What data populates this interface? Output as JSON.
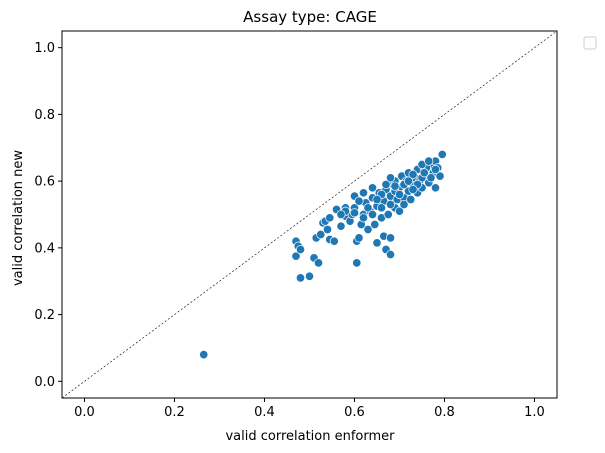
{
  "chart_data": {
    "type": "scatter",
    "title": "Assay type: CAGE",
    "xlabel": "valid correlation enformer",
    "ylabel": "valid correlation new",
    "xlim": [
      -0.05,
      1.05
    ],
    "ylim": [
      -0.05,
      1.05
    ],
    "xticks": [
      0.0,
      0.2,
      0.4,
      0.6,
      0.8,
      1.0
    ],
    "yticks": [
      0.0,
      0.2,
      0.4,
      0.6,
      0.8,
      1.0
    ],
    "xtick_labels": [
      "0.0",
      "0.2",
      "0.4",
      "0.6",
      "0.8",
      "1.0"
    ],
    "ytick_labels": [
      "0.0",
      "0.2",
      "0.4",
      "0.6",
      "0.8",
      "1.0"
    ],
    "reference_line": {
      "style": "dashed",
      "from": [
        -0.05,
        -0.05
      ],
      "to": [
        1.05,
        1.05
      ]
    },
    "legend": {
      "placement": "outside-top-right",
      "entries": []
    },
    "marker_color": "#1f77b4",
    "marker_edge_color": "#ffffff",
    "series": [
      {
        "name": "CAGE",
        "points": [
          [
            0.265,
            0.08
          ],
          [
            0.47,
            0.42
          ],
          [
            0.475,
            0.405
          ],
          [
            0.47,
            0.375
          ],
          [
            0.48,
            0.395
          ],
          [
            0.48,
            0.31
          ],
          [
            0.5,
            0.315
          ],
          [
            0.51,
            0.37
          ],
          [
            0.515,
            0.43
          ],
          [
            0.52,
            0.355
          ],
          [
            0.525,
            0.44
          ],
          [
            0.53,
            0.475
          ],
          [
            0.535,
            0.48
          ],
          [
            0.54,
            0.455
          ],
          [
            0.545,
            0.425
          ],
          [
            0.545,
            0.49
          ],
          [
            0.555,
            0.42
          ],
          [
            0.56,
            0.515
          ],
          [
            0.57,
            0.465
          ],
          [
            0.58,
            0.495
          ],
          [
            0.58,
            0.52
          ],
          [
            0.59,
            0.48
          ],
          [
            0.595,
            0.5
          ],
          [
            0.6,
            0.52
          ],
          [
            0.605,
            0.42
          ],
          [
            0.605,
            0.355
          ],
          [
            0.61,
            0.43
          ],
          [
            0.615,
            0.47
          ],
          [
            0.62,
            0.5
          ],
          [
            0.625,
            0.535
          ],
          [
            0.63,
            0.455
          ],
          [
            0.635,
            0.51
          ],
          [
            0.64,
            0.55
          ],
          [
            0.645,
            0.47
          ],
          [
            0.65,
            0.415
          ],
          [
            0.65,
            0.525
          ],
          [
            0.655,
            0.565
          ],
          [
            0.66,
            0.49
          ],
          [
            0.665,
            0.435
          ],
          [
            0.665,
            0.54
          ],
          [
            0.67,
            0.395
          ],
          [
            0.67,
            0.575
          ],
          [
            0.675,
            0.5
          ],
          [
            0.68,
            0.43
          ],
          [
            0.68,
            0.38
          ],
          [
            0.68,
            0.555
          ],
          [
            0.685,
            0.59
          ],
          [
            0.69,
            0.52
          ],
          [
            0.69,
            0.6
          ],
          [
            0.695,
            0.545
          ],
          [
            0.7,
            0.51
          ],
          [
            0.7,
            0.58
          ],
          [
            0.705,
            0.615
          ],
          [
            0.71,
            0.55
          ],
          [
            0.71,
            0.53
          ],
          [
            0.715,
            0.6
          ],
          [
            0.72,
            0.57
          ],
          [
            0.72,
            0.625
          ],
          [
            0.725,
            0.545
          ],
          [
            0.73,
            0.59
          ],
          [
            0.735,
            0.61
          ],
          [
            0.74,
            0.565
          ],
          [
            0.74,
            0.635
          ],
          [
            0.745,
            0.6
          ],
          [
            0.75,
            0.58
          ],
          [
            0.755,
            0.64
          ],
          [
            0.76,
            0.615
          ],
          [
            0.765,
            0.595
          ],
          [
            0.77,
            0.65
          ],
          [
            0.775,
            0.625
          ],
          [
            0.78,
            0.58
          ],
          [
            0.78,
            0.66
          ],
          [
            0.785,
            0.64
          ],
          [
            0.79,
            0.615
          ],
          [
            0.795,
            0.68
          ],
          [
            0.6,
            0.555
          ],
          [
            0.61,
            0.54
          ],
          [
            0.62,
            0.565
          ],
          [
            0.63,
            0.52
          ],
          [
            0.64,
            0.58
          ],
          [
            0.66,
            0.56
          ],
          [
            0.67,
            0.59
          ],
          [
            0.68,
            0.61
          ],
          [
            0.69,
            0.57
          ],
          [
            0.71,
            0.59
          ],
          [
            0.73,
            0.62
          ],
          [
            0.75,
            0.61
          ],
          [
            0.76,
            0.64
          ],
          [
            0.77,
            0.61
          ],
          [
            0.72,
            0.6
          ],
          [
            0.74,
            0.59
          ],
          [
            0.7,
            0.56
          ],
          [
            0.68,
            0.53
          ],
          [
            0.66,
            0.52
          ],
          [
            0.64,
            0.5
          ],
          [
            0.62,
            0.49
          ],
          [
            0.58,
            0.51
          ],
          [
            0.57,
            0.5
          ],
          [
            0.6,
            0.505
          ],
          [
            0.65,
            0.545
          ],
          [
            0.69,
            0.585
          ],
          [
            0.73,
            0.575
          ],
          [
            0.75,
            0.65
          ],
          [
            0.78,
            0.635
          ],
          [
            0.765,
            0.66
          ],
          [
            0.755,
            0.625
          ]
        ]
      }
    ]
  }
}
